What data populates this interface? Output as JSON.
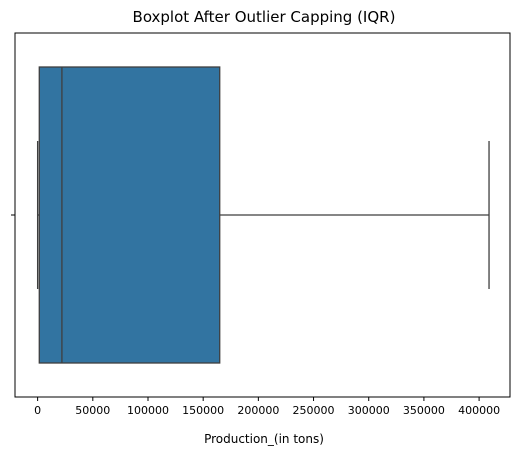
{
  "chart_data": {
    "type": "boxplot",
    "title": "Boxplot After Outlier Capping (IQR)",
    "xlabel": "Production_(in tons)",
    "ylabel": "",
    "orientation": "horizontal",
    "xlim": [
      -20500,
      428000
    ],
    "x_ticks": [
      0,
      50000,
      100000,
      150000,
      200000,
      250000,
      300000,
      350000,
      400000
    ],
    "x_tick_labels": [
      "0",
      "50000",
      "100000",
      "150000",
      "200000",
      "250000",
      "300000",
      "350000",
      "400000"
    ],
    "box": {
      "whisker_low": 0,
      "q1": 1500,
      "median": 22000,
      "q3": 165000,
      "whisker_high": 409000
    },
    "grid": false,
    "legend": "none",
    "colors": {
      "box_fill": "#3274a1",
      "line": "#3f3f3f"
    }
  }
}
